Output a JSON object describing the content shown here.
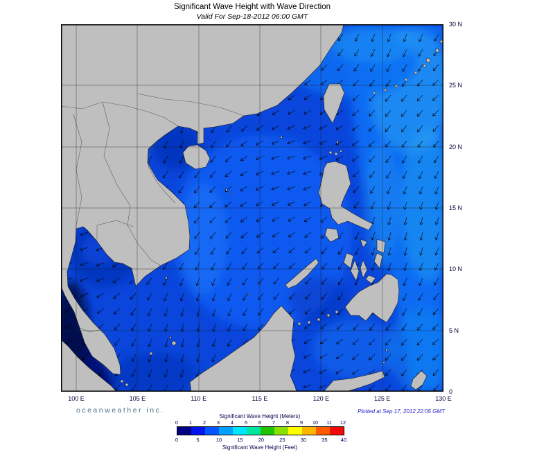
{
  "header": {
    "title": "Significant Wave Height with Wave Direction",
    "subtitle": "Valid For Sep-18-2012 06:00 GMT"
  },
  "map": {
    "lat_labels": [
      "30 N",
      "25 N",
      "20 N",
      "15 N",
      "10 N",
      "5 N",
      "0"
    ],
    "lon_labels": [
      "100 E",
      "105 E",
      "110 E",
      "115 E",
      "120 E",
      "125 E",
      "130 E"
    ]
  },
  "footer": {
    "branding": "oceanweather inc.",
    "plotted": "Plotted at Sep 17, 2012 22:05 GMT"
  },
  "legend": {
    "meters_label": "Significant Wave Height (Meters)",
    "feet_label": "Significant Wave Height (Feet)",
    "meters_ticks": [
      "0",
      "1",
      "2",
      "3",
      "4",
      "5",
      "6",
      "7",
      "8",
      "9",
      "10",
      "11",
      "12"
    ],
    "feet_ticks": [
      "0",
      "5",
      "10",
      "15",
      "20",
      "25",
      "30",
      "35",
      "40"
    ],
    "colors": [
      "#000080",
      "#0014eb",
      "#0055ff",
      "#00a0ff",
      "#00e5ff",
      "#00e6a0",
      "#1fc400",
      "#8ce000",
      "#ffff00",
      "#ffb400",
      "#ff5a00",
      "#f00a0a"
    ]
  }
}
